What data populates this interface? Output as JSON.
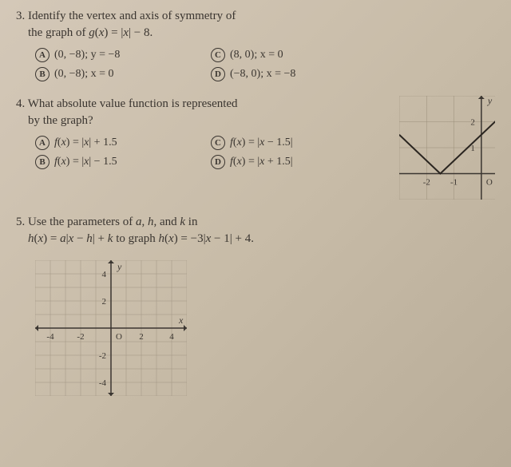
{
  "q3": {
    "number": "3.",
    "text_line1": "Identify the vertex and axis of symmetry of",
    "text_line2": "the graph of g(x) = |x| − 8.",
    "choices": {
      "A": "(0, −8); y = −8",
      "B": "(0, −8); x = 0",
      "C": "(8, 0); x = 0",
      "D": "(−8, 0); x = −8"
    }
  },
  "q4": {
    "number": "4.",
    "text_line1": "What absolute value function is represented",
    "text_line2": "by the graph?",
    "choices": {
      "A": "f(x) = |x| + 1.5",
      "B": "f(x) = |x| − 1.5",
      "C": "f(x) = |x − 1.5|",
      "D": "f(x) = |x + 1.5|"
    },
    "graph": {
      "width": 120,
      "height": 130,
      "vertex_x": -1.5,
      "vertex_y": 0,
      "xmin": -3,
      "xmax": 0.5,
      "ymin": -1,
      "ymax": 3,
      "xticks": [
        -2,
        -1
      ],
      "yticks": [
        1,
        2
      ],
      "axis_color": "#3a3530",
      "grid_color": "#9a8e7a",
      "line_color": "#2a2520",
      "y_label": "y",
      "o_label": "O"
    }
  },
  "q5": {
    "number": "5.",
    "text_line1": "Use the parameters of a, h, and k in",
    "text_line2": "h(x) = a|x − h| + k to graph h(x) = −3|x − 1| + 4.",
    "graph": {
      "width": 190,
      "height": 170,
      "xmin": -5,
      "xmax": 5,
      "ymin": -5,
      "ymax": 5,
      "xticks": [
        -4,
        -2,
        2,
        4
      ],
      "yticks": [
        -4,
        -2,
        2,
        4
      ],
      "axis_color": "#3a3530",
      "grid_color": "#a09482",
      "x_label": "x",
      "y_label": "y",
      "o_label": "O"
    }
  }
}
